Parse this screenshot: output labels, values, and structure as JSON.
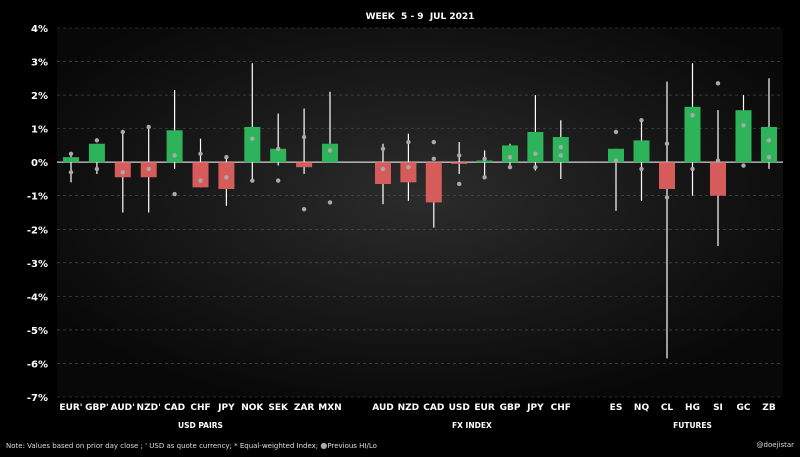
{
  "chart_data": {
    "type": "bar",
    "title": "WEEK  5 - 9  JUL 2021",
    "ylim": [
      -7,
      4
    ],
    "yticks": [
      "4%",
      "3%",
      "2%",
      "1%",
      "0%",
      "-1%",
      "-2%",
      "-3%",
      "-4%",
      "-5%",
      "-6%",
      "-7%"
    ],
    "grid": true,
    "colors": {
      "up": "#2db35a",
      "down": "#d65c5c",
      "whisker": "#ffffff",
      "prev_marker": "#aaaaaa",
      "zero_line": "#ffffff",
      "grid": "#555555"
    },
    "groups": [
      {
        "label": "USD PAIRS",
        "items": [
          {
            "label": "EUR'",
            "value": 0.15,
            "high": 0.3,
            "low": -0.6,
            "prev_hi": 0.25,
            "prev_lo": -0.3
          },
          {
            "label": "GBP'",
            "value": 0.55,
            "high": 0.55,
            "low": -0.35,
            "prev_hi": 0.65,
            "prev_lo": -0.2
          },
          {
            "label": "AUD'",
            "value": -0.45,
            "high": 0.95,
            "low": -1.5,
            "prev_hi": 0.9,
            "prev_lo": -0.3
          },
          {
            "label": "NZD'",
            "value": -0.45,
            "high": 1.05,
            "low": -1.5,
            "prev_hi": 1.05,
            "prev_lo": -0.2
          },
          {
            "label": "CAD",
            "value": 0.95,
            "high": 2.15,
            "low": -0.2,
            "prev_hi": 0.2,
            "prev_lo": -0.95
          },
          {
            "label": "CHF",
            "value": -0.75,
            "high": 0.7,
            "low": -0.75,
            "prev_hi": 0.25,
            "prev_lo": -0.55
          },
          {
            "label": "JPY",
            "value": -0.8,
            "high": 0.2,
            "low": -1.3,
            "prev_hi": 0.15,
            "prev_lo": -0.45
          },
          {
            "label": "NOK",
            "value": 1.05,
            "high": 2.95,
            "low": -0.55,
            "prev_hi": 0.7,
            "prev_lo": -0.55
          },
          {
            "label": "SEK",
            "value": 0.4,
            "high": 1.45,
            "low": -0.1,
            "prev_hi": 0.4,
            "prev_lo": -0.55
          },
          {
            "label": "ZAR",
            "value": -0.15,
            "high": 1.6,
            "low": -0.35,
            "prev_hi": 0.75,
            "prev_lo": -1.4
          },
          {
            "label": "MXN",
            "value": 0.55,
            "high": 2.1,
            "low": 0.0,
            "prev_hi": 0.35,
            "prev_lo": -1.2
          }
        ]
      },
      {
        "label": "FX INDEX",
        "items": [
          {
            "label": "AUD",
            "value": -0.65,
            "high": 0.55,
            "low": -1.25,
            "prev_hi": 0.4,
            "prev_lo": -0.2
          },
          {
            "label": "NZD",
            "value": -0.6,
            "high": 0.85,
            "low": -1.15,
            "prev_hi": 0.6,
            "prev_lo": -0.15
          },
          {
            "label": "CAD",
            "value": -1.2,
            "high": 0.0,
            "low": -1.95,
            "prev_hi": 0.6,
            "prev_lo": 0.1
          },
          {
            "label": "USD",
            "value": -0.05,
            "high": 0.6,
            "low": -0.35,
            "prev_hi": 0.2,
            "prev_lo": -0.65
          },
          {
            "label": "EUR",
            "value": 0.05,
            "high": 0.35,
            "low": -0.45,
            "prev_hi": 0.1,
            "prev_lo": -0.45
          },
          {
            "label": "GBP",
            "value": 0.5,
            "high": 0.55,
            "low": -0.15,
            "prev_hi": 0.15,
            "prev_lo": -0.15
          },
          {
            "label": "JPY",
            "value": 0.9,
            "high": 2.0,
            "low": -0.25,
            "prev_hi": 0.25,
            "prev_lo": -0.15
          },
          {
            "label": "CHF",
            "value": 0.75,
            "high": 1.25,
            "low": -0.5,
            "prev_hi": 0.45,
            "prev_lo": 0.2
          }
        ]
      },
      {
        "label": "FUTURES",
        "items": [
          {
            "label": "ES",
            "value": 0.4,
            "high": 0.4,
            "low": -1.45,
            "prev_hi": 0.9,
            "prev_lo": 0.05
          },
          {
            "label": "NQ",
            "value": 0.65,
            "high": 1.25,
            "low": -1.15,
            "prev_hi": 1.25,
            "prev_lo": -0.2
          },
          {
            "label": "CL",
            "value": -0.8,
            "high": 2.4,
            "low": -5.85,
            "prev_hi": 0.55,
            "prev_lo": -1.05
          },
          {
            "label": "HG",
            "value": 1.65,
            "high": 2.95,
            "low": -1.0,
            "prev_hi": 1.4,
            "prev_lo": -0.2
          },
          {
            "label": "SI",
            "value": -1.0,
            "high": 1.55,
            "low": -2.5,
            "prev_hi": 2.35,
            "prev_lo": 0.05
          },
          {
            "label": "GC",
            "value": 1.55,
            "high": 2.0,
            "low": 0.0,
            "prev_hi": 1.1,
            "prev_lo": -0.1
          },
          {
            "label": "ZB",
            "value": 1.05,
            "high": 2.5,
            "low": -0.2,
            "prev_hi": 0.65,
            "prev_lo": 0.15
          }
        ]
      }
    ]
  },
  "footer": {
    "note": "Note:  Values based on prior day close ;  ' USD as quote currency;  * Equal-weighted Index;",
    "prev_marker_label": "Previous HI/Lo",
    "handle": "@doejistar"
  }
}
